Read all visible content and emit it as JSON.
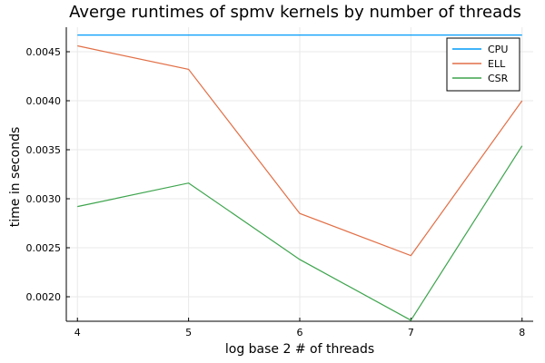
{
  "chart_data": {
    "type": "line",
    "title": "Averge runtimes of spmv kernels by number of threads",
    "xlabel": "log base 2 # of threads",
    "ylabel": "time in seconds",
    "x": [
      4,
      5,
      6,
      7,
      8
    ],
    "xlim": [
      3.9,
      8.1
    ],
    "ylim": [
      0.00175,
      0.00475
    ],
    "xticks": [
      4,
      5,
      6,
      7,
      8
    ],
    "xtick_labels": [
      "4",
      "5",
      "6",
      "7",
      "8"
    ],
    "yticks": [
      0.002,
      0.0025,
      0.003,
      0.0035,
      0.004,
      0.0045
    ],
    "ytick_labels": [
      "0.0020",
      "0.0025",
      "0.0030",
      "0.0035",
      "0.0040",
      "0.0045"
    ],
    "grid": true,
    "legend_position": "top-right",
    "series": [
      {
        "name": "CPU",
        "color": "#009af9",
        "values": [
          0.00467,
          0.00467,
          0.00467,
          0.00467,
          0.00467
        ]
      },
      {
        "name": "ELL",
        "color": "#e26f46",
        "values": [
          0.00456,
          0.00432,
          0.00285,
          0.00242,
          0.004
        ]
      },
      {
        "name": "CSR",
        "color": "#3da44d",
        "values": [
          0.00292,
          0.00316,
          0.00238,
          0.00176,
          0.00354
        ]
      }
    ]
  }
}
